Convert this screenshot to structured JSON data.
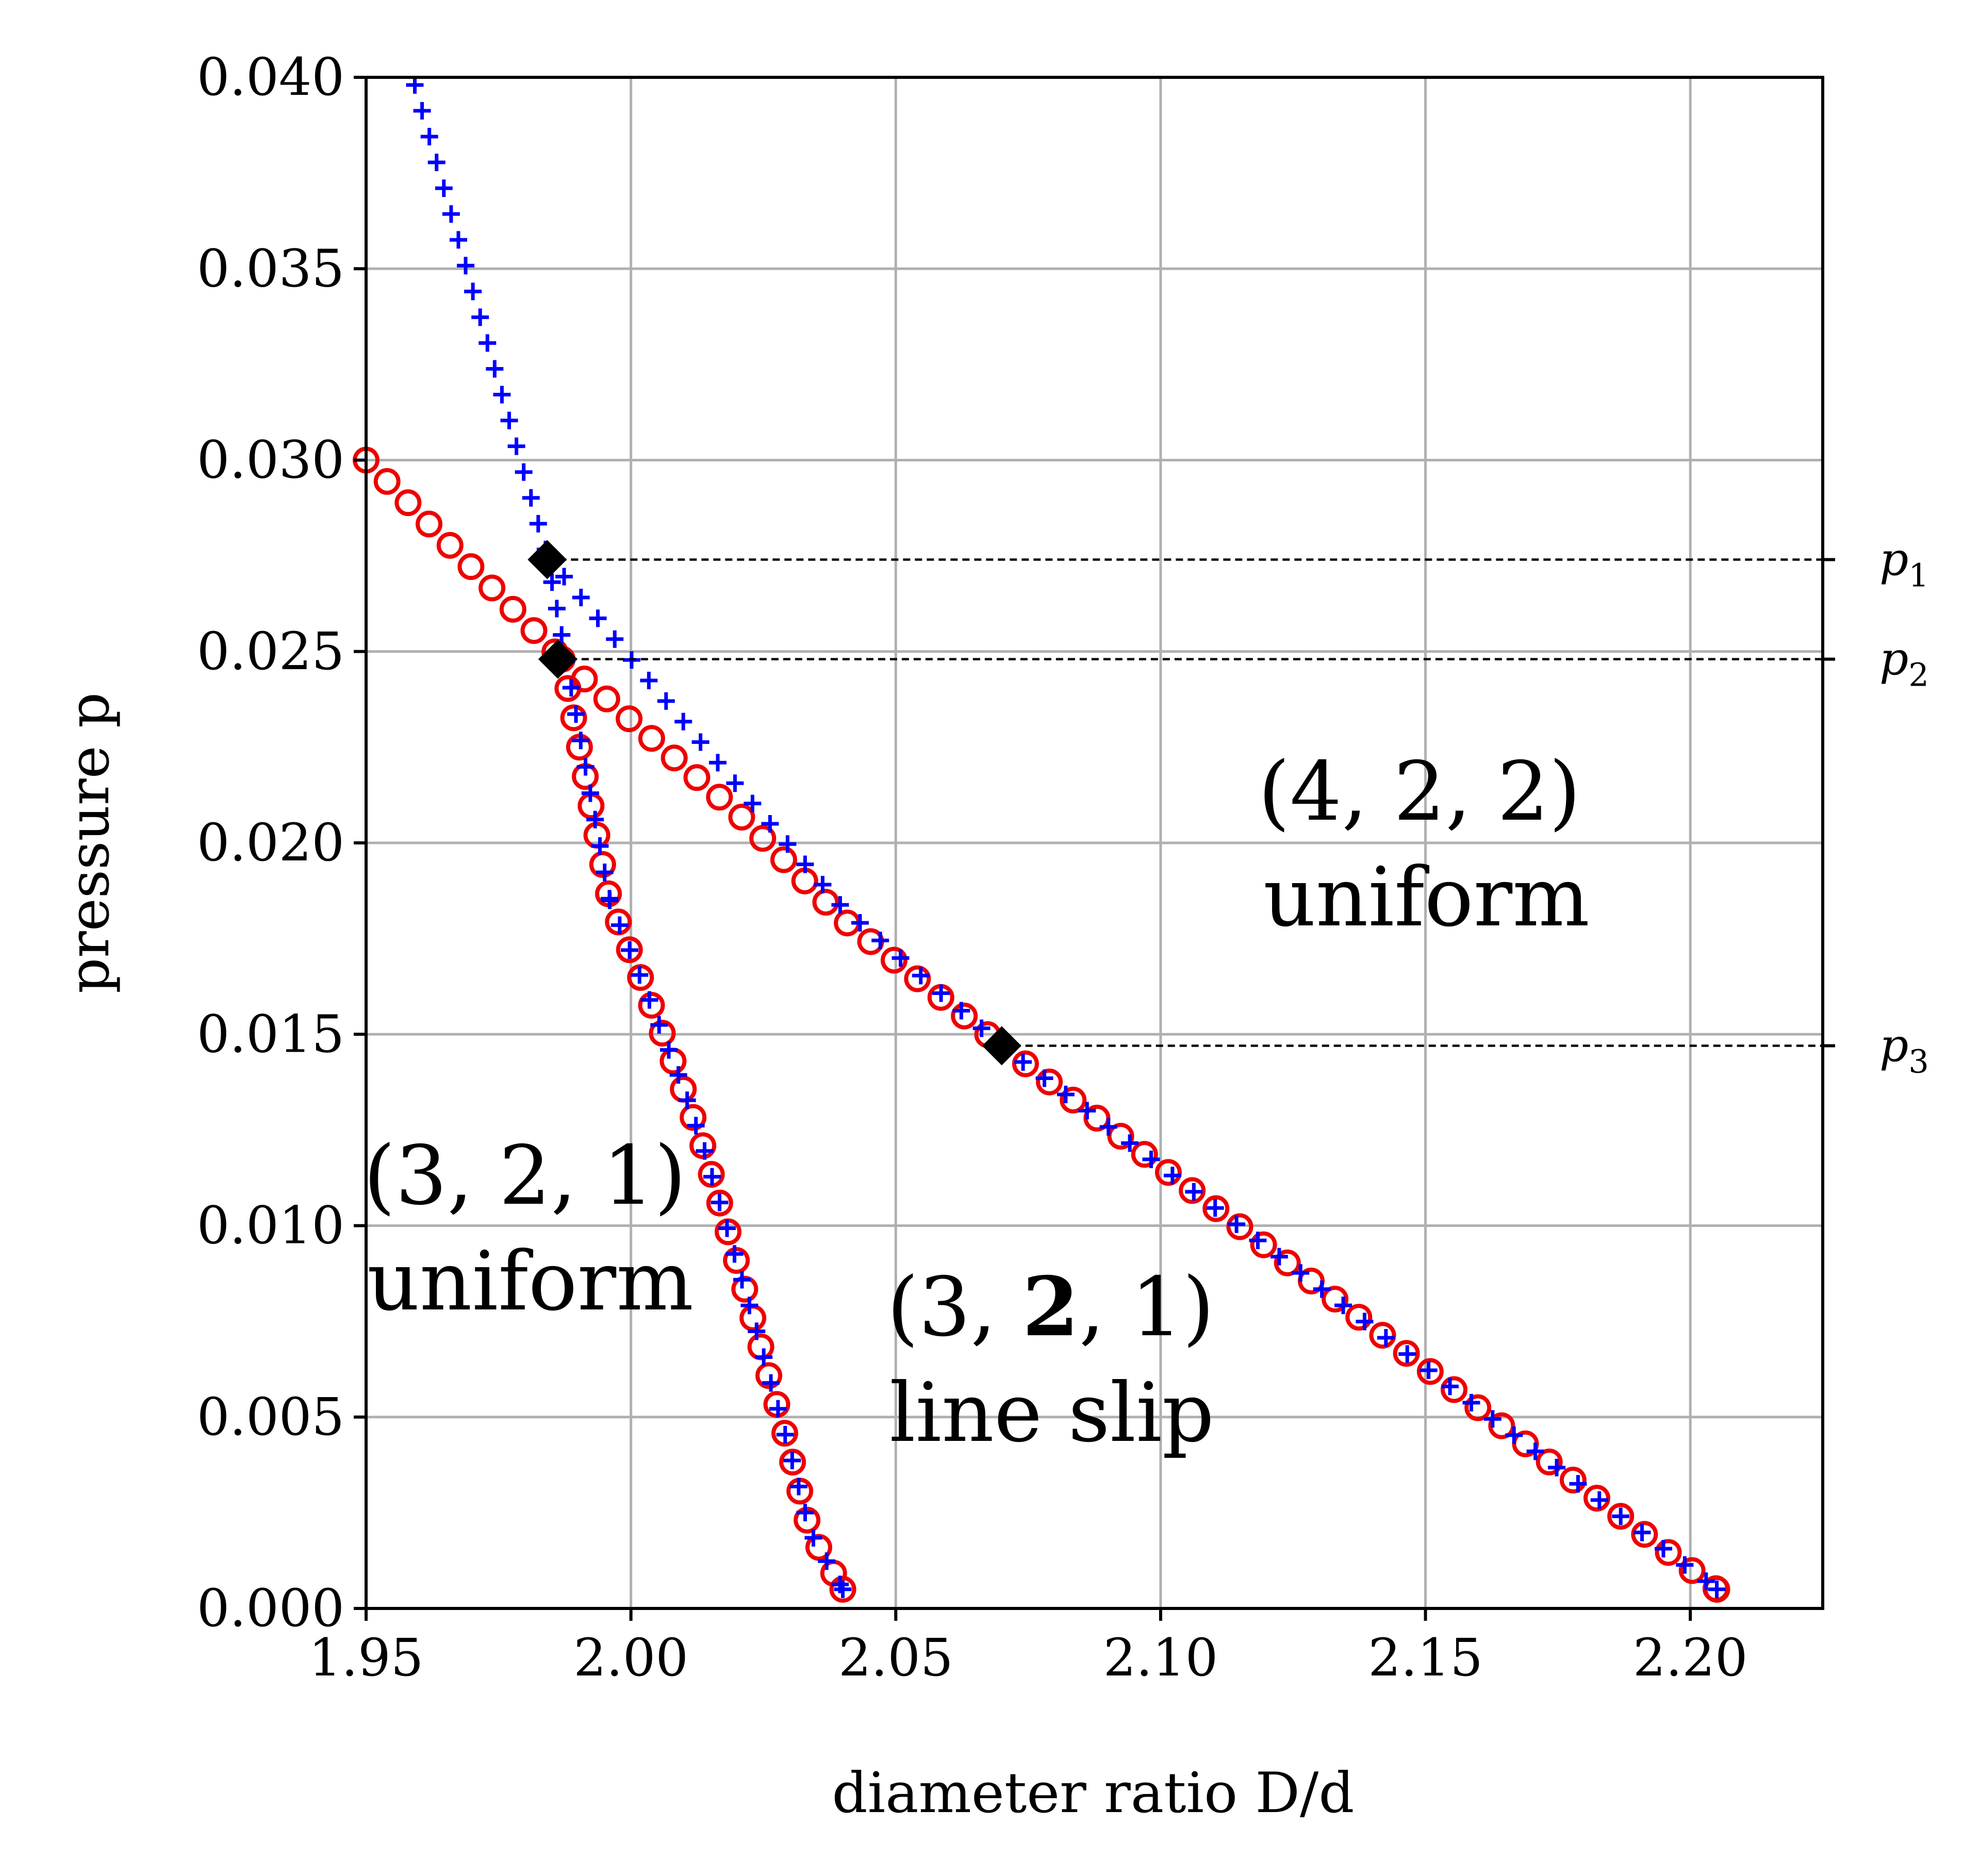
{
  "chart_data": {
    "type": "scatter",
    "xlabel": "diameter ratio D/d",
    "ylabel": "pressure p",
    "xlim": [
      1.95,
      2.225
    ],
    "ylim": [
      0.0,
      0.04
    ],
    "xticks": [
      "1.95",
      "2.00",
      "2.05",
      "2.10",
      "2.15",
      "2.20"
    ],
    "yticks": [
      "0.000",
      "0.005",
      "0.010",
      "0.015",
      "0.020",
      "0.025",
      "0.030",
      "0.035",
      "0.040"
    ],
    "grid": true,
    "colors": {
      "plus": "#0000ff",
      "circle": "#ee0000",
      "diamond": "#000000"
    },
    "series": [
      {
        "marker": "plus",
        "segments": [
          {
            "x": [
              1.9592,
              1.9842
            ],
            "y": [
              0.0398,
              0.0275
            ]
          },
          {
            "x": [
              1.9842,
              1.996
            ],
            "y": [
              0.0275,
              0.0185
            ]
          },
          {
            "x": [
              1.996,
              2.0032,
              2.0088,
              2.0138,
              2.018,
              2.0222,
              2.0262,
              2.0302,
              2.0338,
              2.04
            ],
            "y": [
              0.0185,
              0.016,
              0.014,
              0.012,
              0.01,
              0.008,
              0.006,
              0.004,
              0.002,
              0.0005
            ]
          },
          {
            "x": [
              1.9842,
              2.0,
              2.02,
              2.04,
              2.07
            ],
            "y": [
              0.0275,
              0.0248,
              0.0215,
              0.0183,
              0.0147
            ]
          },
          {
            "x": [
              2.07,
              2.205
            ],
            "y": [
              0.0147,
              0.0005
            ]
          }
        ]
      },
      {
        "marker": "circle",
        "segments": [
          {
            "x": [
              1.95,
              1.987
            ],
            "y": [
              0.03,
              0.0248
            ]
          },
          {
            "x": [
              1.987,
              2.0,
              2.02,
              2.04,
              2.07
            ],
            "y": [
              0.0248,
              0.0232,
              0.0208,
              0.018,
              0.0147
            ]
          },
          {
            "x": [
              2.07,
              2.205
            ],
            "y": [
              0.0147,
              0.0005
            ]
          },
          {
            "x": [
              1.987,
              1.996,
              2.0032,
              2.0088,
              2.0138,
              2.018,
              2.0222,
              2.0262,
              2.0302,
              2.0338,
              2.04
            ],
            "y": [
              0.0248,
              0.0185,
              0.016,
              0.014,
              0.012,
              0.01,
              0.008,
              0.006,
              0.004,
              0.002,
              0.0005
            ]
          }
        ]
      }
    ],
    "transition_points": [
      {
        "x": 1.9842,
        "y": 0.0274
      },
      {
        "x": 1.9862,
        "y": 0.0248
      },
      {
        "x": 2.07,
        "y": 0.0147
      }
    ],
    "reference_lines": [
      {
        "label": "p",
        "subscript": "1",
        "y": 0.0274,
        "x_start": 1.9842
      },
      {
        "label": "p",
        "subscript": "2",
        "y": 0.0248,
        "x_start": 1.9862
      },
      {
        "label": "p",
        "subscript": "3",
        "y": 0.0147,
        "x_start": 2.07
      }
    ],
    "annotations": [
      {
        "lines": [
          "(4, 2, 2)",
          "uniform"
        ],
        "bold": ""
      },
      {
        "lines": [
          "(3, 2, 1)",
          "uniform"
        ],
        "bold": ""
      },
      {
        "lines": [
          "(3, 2, 1)",
          "line slip"
        ],
        "bold": "2"
      }
    ]
  }
}
